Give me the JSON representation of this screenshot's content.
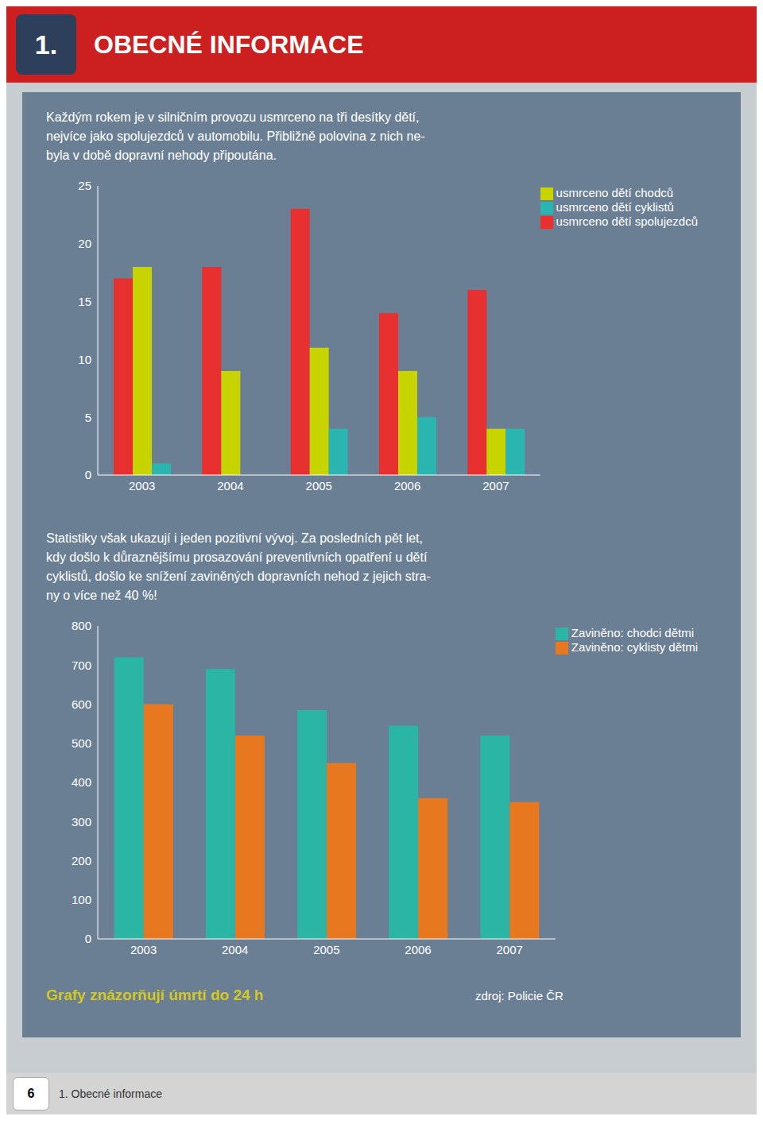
{
  "chart_data": [
    {
      "type": "bar",
      "annotations": [
        "1.",
        "OBECNÉ INFORMACE",
        "Každým rokem je v silničním provozu usmrceno na tři desítky dětí,",
        "nejvíce jako spolujezdců v automobilu. Přibližně polovina z nich ne-",
        "byla v době dopravní nehody připoutána."
      ],
      "categories": [
        "2003",
        "2004",
        "2005",
        "2006",
        "2007"
      ],
      "series": [
        {
          "name": "usmrceno dětí spolujezdců",
          "color": "#e83030",
          "values": [
            17,
            18,
            23,
            14,
            16
          ]
        },
        {
          "name": "usmrceno dětí chodců",
          "color": "#c8d400",
          "values": [
            18,
            9,
            11,
            9,
            4
          ]
        },
        {
          "name": "usmrceno dětí cyklistů",
          "color": "#2ab5b0",
          "values": [
            1,
            0,
            4,
            5,
            4
          ]
        }
      ],
      "ylim": [
        0,
        25
      ],
      "yticks": [
        0,
        5,
        10,
        15,
        20,
        25
      ],
      "grid": false,
      "legend": "upper right"
    },
    {
      "type": "bar",
      "annotations": [
        "Statistiky však ukazují i jeden pozitivní vývoj. Za posledních pět let,",
        "kdy došlo k důraznějšímu prosazování preventivních opatření u dětí",
        "cyklistů, došlo ke snížení zaviněných dopravních nehod z jejich stra-",
        "ny o více než 40 %!",
        "Grafy znázorňují úmrtí do 24 h",
        "zdroj: Policie ČR",
        "6",
        "1. Obecné informace"
      ],
      "categories": [
        "2003",
        "2004",
        "2005",
        "2006",
        "2007"
      ],
      "series": [
        {
          "name": "Zaviněno: chodci dětmi",
          "color": "#2ab5a5",
          "values": [
            720,
            690,
            585,
            545,
            520
          ]
        },
        {
          "name": "Zaviněno: cyklisty dětmi",
          "color": "#e87820",
          "values": [
            600,
            520,
            450,
            360,
            350
          ]
        }
      ],
      "ylim": [
        0,
        800
      ],
      "yticks": [
        0,
        100,
        200,
        300,
        400,
        500,
        600,
        700,
        800
      ],
      "grid": false,
      "legend": "upper right"
    }
  ]
}
